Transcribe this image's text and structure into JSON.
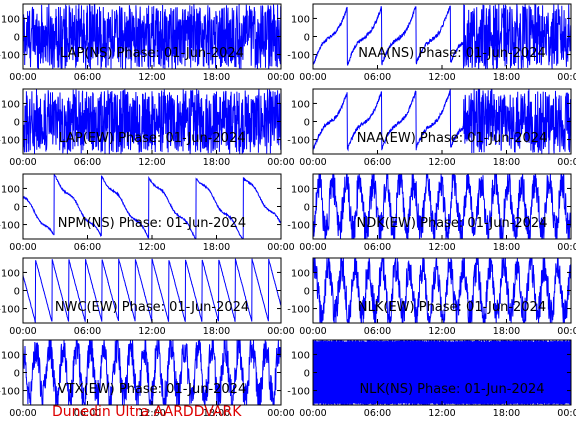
{
  "footer": "Dunedin Ultra AARDDVARK",
  "colors": {
    "trace": "#0000ff",
    "axes": "#000000",
    "footer": "#dd0000",
    "bg": "#ffffff"
  },
  "chart_data": [
    {
      "type": "line",
      "title": "LAP(NS) Phase: 01-Jun-2024",
      "ylim": [
        -180,
        180
      ],
      "yticks": [
        100,
        0,
        -100
      ],
      "xticks": [
        "00:00",
        "06:00",
        "12:00",
        "18:00",
        "00:00"
      ],
      "pattern": "noisy-dense",
      "x_range_hours": [
        0,
        24
      ]
    },
    {
      "type": "line",
      "title": "NAA(NS) Phase: 01-Jun-2024",
      "ylim": [
        -180,
        180
      ],
      "yticks": [
        100,
        0,
        -100
      ],
      "xticks": [
        "00:00",
        "06:00",
        "12:00",
        "18:00",
        "00:00"
      ],
      "pattern": "wraps-then-dense",
      "x_range_hours": [
        0,
        24
      ]
    },
    {
      "type": "line",
      "title": "LAP(EW) Phase: 01-Jun-2024",
      "ylim": [
        -180,
        180
      ],
      "yticks": [
        100,
        0,
        -100
      ],
      "xticks": [
        "00:00",
        "06:00",
        "12:00",
        "18:00",
        "00:00"
      ],
      "pattern": "noisy-dense",
      "x_range_hours": [
        0,
        24
      ]
    },
    {
      "type": "line",
      "title": "NAA(EW) Phase: 01-Jun-2024",
      "ylim": [
        -180,
        180
      ],
      "yticks": [
        100,
        0,
        -100
      ],
      "xticks": [
        "00:00",
        "06:00",
        "12:00",
        "18:00",
        "00:00"
      ],
      "pattern": "wraps-then-dense",
      "x_range_hours": [
        0,
        24
      ]
    },
    {
      "type": "line",
      "title": "NPM(NS) Phase: 01-Jun-2024",
      "ylim": [
        -180,
        180
      ],
      "yticks": [
        100,
        0,
        -100
      ],
      "xticks": [
        "00:00",
        "06:00",
        "12:00",
        "18:00",
        "00:00"
      ],
      "pattern": "sawtooth-slow",
      "x_range_hours": [
        0,
        24
      ]
    },
    {
      "type": "line",
      "title": "NDK(EW) Phase: 01-Jun-2024",
      "ylim": [
        -180,
        180
      ],
      "yticks": [
        100,
        0,
        -100
      ],
      "xticks": [
        "00:00",
        "06:00",
        "12:00",
        "18:00",
        "00:00"
      ],
      "pattern": "noisy-sparse",
      "x_range_hours": [
        0,
        24
      ]
    },
    {
      "type": "line",
      "title": "NWC(EW) Phase: 01-Jun-2024",
      "ylim": [
        -180,
        180
      ],
      "yticks": [
        100,
        0,
        -100
      ],
      "xticks": [
        "00:00",
        "06:00",
        "12:00",
        "18:00",
        "00:00"
      ],
      "pattern": "sawtooth-fast",
      "x_range_hours": [
        0,
        24
      ]
    },
    {
      "type": "line",
      "title": "NLK(EW) Phase: 01-Jun-2024",
      "ylim": [
        -180,
        180
      ],
      "yticks": [
        100,
        0,
        -100
      ],
      "xticks": [
        "00:00",
        "06:00",
        "12:00",
        "18:00",
        "00:00"
      ],
      "pattern": "noisy-sparse",
      "x_range_hours": [
        0,
        24
      ]
    },
    {
      "type": "line",
      "title": "VTX(EW) Phase: 01-Jun-2024",
      "ylim": [
        -180,
        180
      ],
      "yticks": [
        100,
        0,
        -100
      ],
      "xticks": [
        "00:00",
        "06:00",
        "12:00",
        "18:00",
        "00:00"
      ],
      "pattern": "noisy-sparse",
      "x_range_hours": [
        0,
        24
      ]
    },
    {
      "type": "line",
      "title": "NLK(NS) Phase: 01-Jun-2024",
      "ylim": [
        -180,
        180
      ],
      "yticks": [
        100,
        0,
        -100
      ],
      "xticks": [
        "00:00",
        "06:00",
        "12:00",
        "18:00",
        "00:00"
      ],
      "pattern": "solid-block",
      "x_range_hours": [
        0,
        24
      ]
    }
  ]
}
